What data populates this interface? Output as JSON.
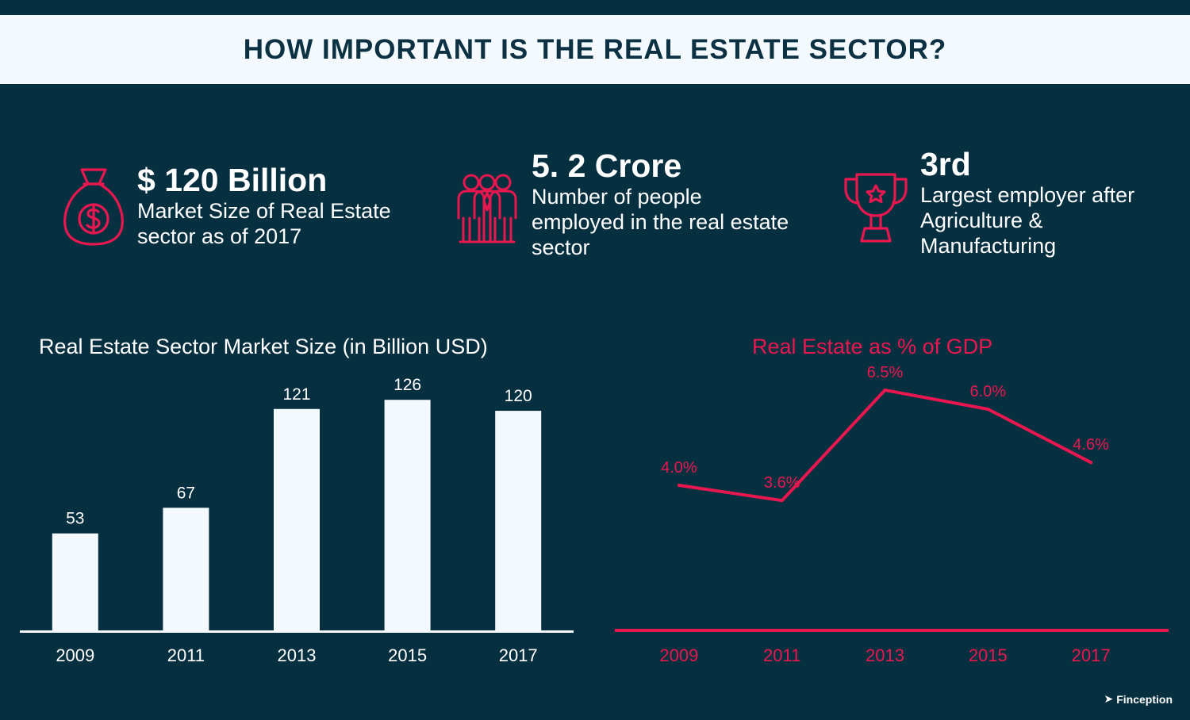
{
  "header": {
    "title": "HOW IMPORTANT IS THE REAL ESTATE SECTOR?"
  },
  "stats": [
    {
      "icon": "money-bag-icon",
      "value": "$ 120 Billion",
      "description": "Market Size of Real Estate sector as of 2017"
    },
    {
      "icon": "people-group-icon",
      "value": "5. 2 Crore",
      "description": "Number of people employed in the real estate sector"
    },
    {
      "icon": "trophy-icon",
      "value": "3rd",
      "description": "Largest employer after Agriculture & Manufacturing"
    }
  ],
  "colors": {
    "background": "#062f40",
    "accent": "#e8174f",
    "bar": "#f3f9fd",
    "text": "#ffffff"
  },
  "chart_data": [
    {
      "type": "bar",
      "title": "Real Estate Sector Market Size (in Billion USD)",
      "categories": [
        "2009",
        "2011",
        "2013",
        "2015",
        "2017"
      ],
      "values": [
        53,
        67,
        121,
        126,
        120
      ],
      "data_labels": [
        "53",
        "67",
        "121",
        "126",
        "120"
      ],
      "ylim": [
        0,
        130
      ],
      "grid": false
    },
    {
      "type": "line",
      "title": "Real Estate as % of GDP",
      "categories": [
        "2009",
        "2011",
        "2013",
        "2015",
        "2017"
      ],
      "values": [
        4.0,
        3.6,
        6.5,
        6.0,
        4.6
      ],
      "data_labels": [
        "4.0%",
        "3.6%",
        "6.5%",
        "6.0%",
        "4.6%"
      ],
      "grid": false
    }
  ],
  "brand": {
    "name": "Finception"
  }
}
